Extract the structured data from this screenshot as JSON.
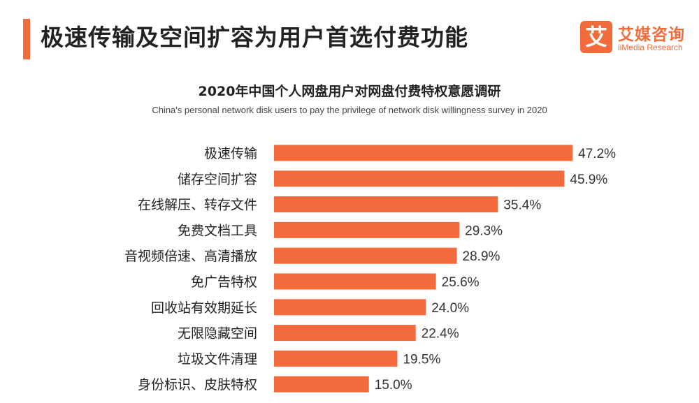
{
  "header": {
    "title": "极速传输及空间扩容为用户首选付费功能"
  },
  "logo": {
    "mark": "艾",
    "name_cn": "艾媒咨询",
    "name_en": "iiMedia Research"
  },
  "colors": {
    "accent": "#f26b3a",
    "bar": "#f36a3d"
  },
  "chart_data": {
    "type": "bar",
    "orientation": "horizontal",
    "title": "2020年中国个人网盘用户对网盘付费特权意愿调研",
    "subtitle": "China's personal network disk users to pay the privilege of network disk willingness survey in 2020",
    "categories": [
      "极速传输",
      "储存空间扩容",
      "在线解压、转存文件",
      "免费文档工具",
      "音视频倍速、高清播放",
      "免广告特权",
      "回收站有效期延长",
      "无限隐藏空间",
      "垃圾文件清理",
      "身份标识、皮肤特权"
    ],
    "values": [
      47.2,
      45.9,
      35.4,
      29.3,
      28.9,
      25.6,
      24.0,
      22.4,
      19.5,
      15.0
    ],
    "value_labels": [
      "47.2%",
      "45.9%",
      "35.4%",
      "29.3%",
      "28.9%",
      "25.6%",
      "24.0%",
      "22.4%",
      "19.5%",
      "15.0%"
    ],
    "unit": "%",
    "xlim": [
      0,
      50
    ],
    "grid": false,
    "legend": "none"
  }
}
